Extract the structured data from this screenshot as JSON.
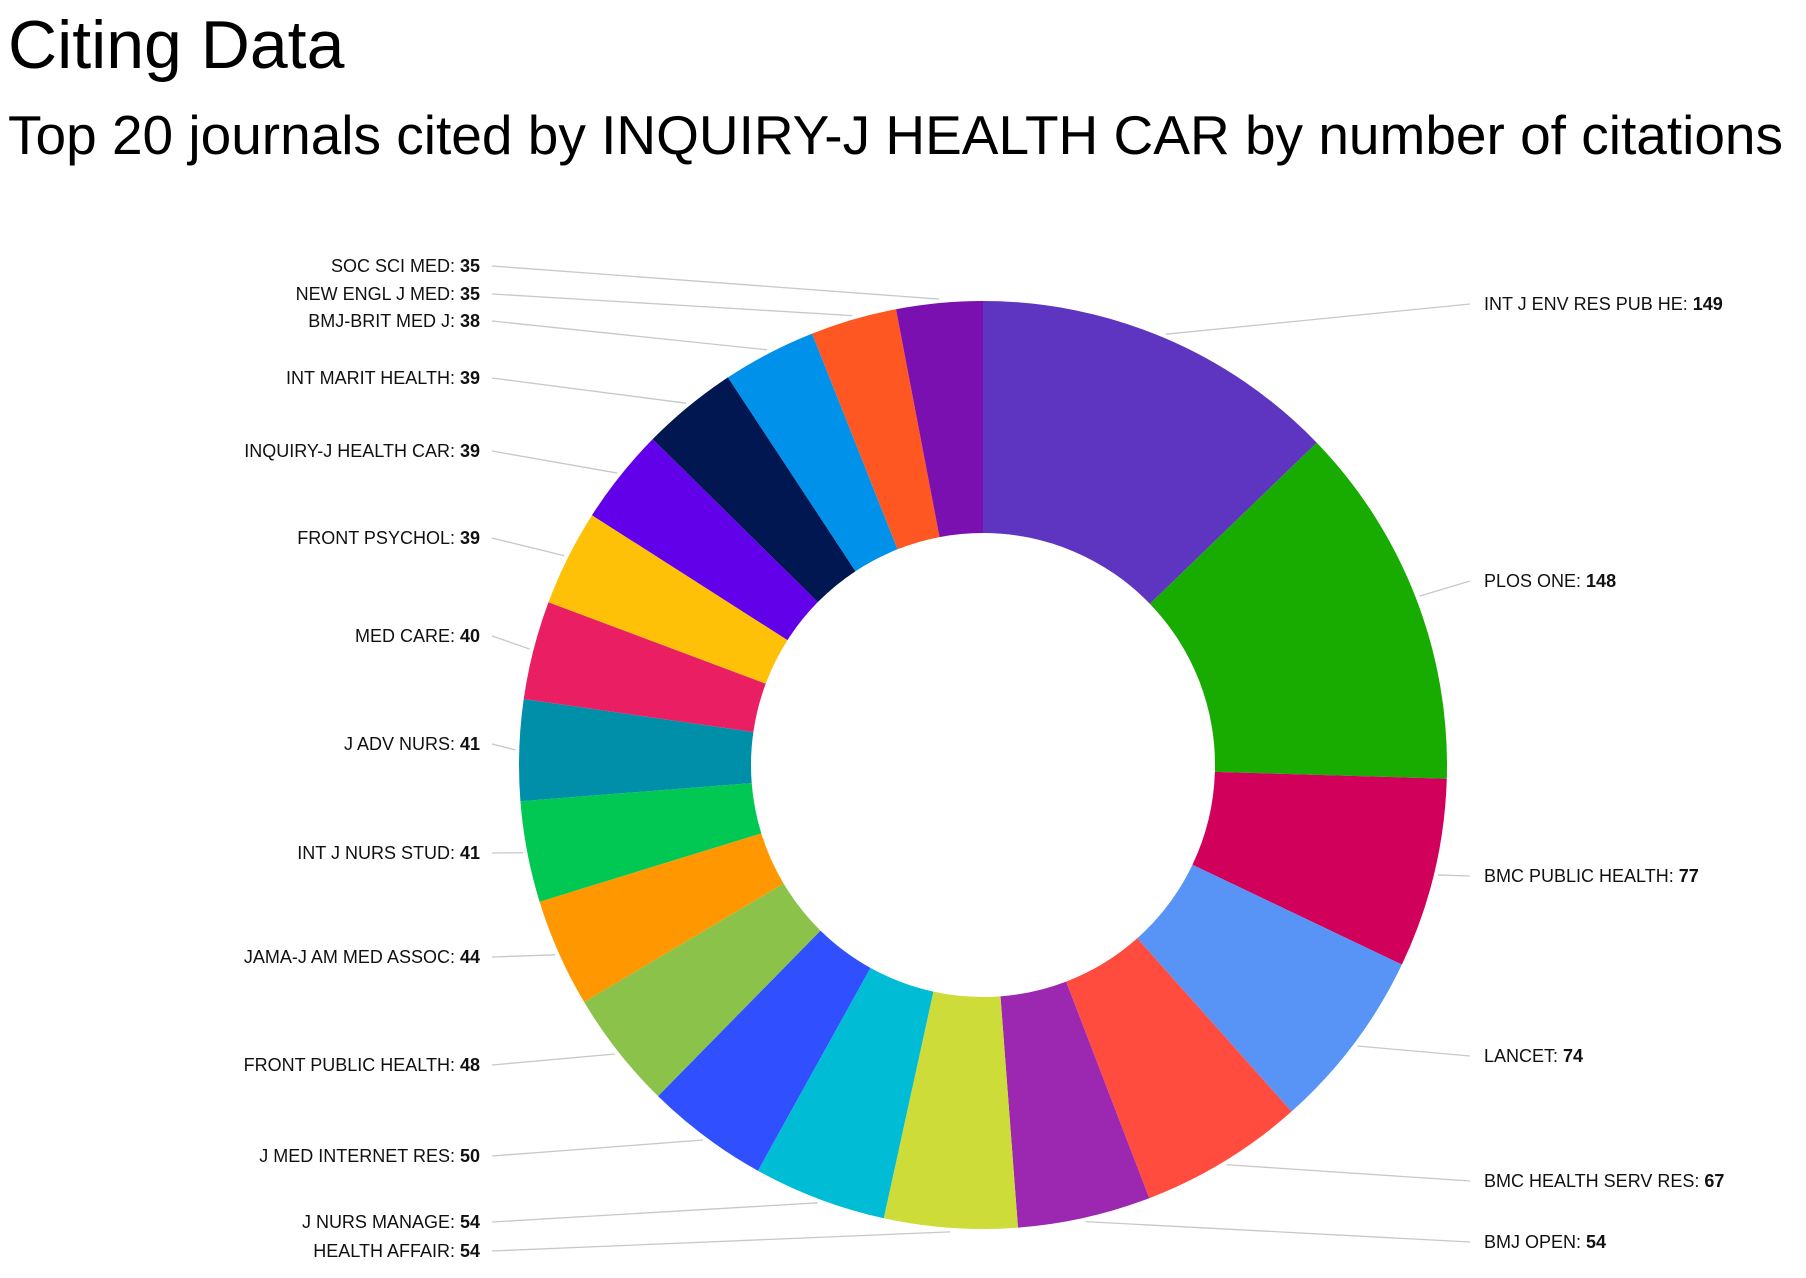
{
  "chart_data": {
    "type": "pie",
    "donut": true,
    "title": "Citing Data",
    "subtitle": "Top 20 journals cited by INQUIRY-J HEALTH CAR by number of citations",
    "slices": [
      {
        "label": "INT J ENV RES PUB HE",
        "value": 149,
        "color": "#5e35c1"
      },
      {
        "label": "PLOS ONE",
        "value": 148,
        "color": "#18ab00"
      },
      {
        "label": "BMC PUBLIC HEALTH",
        "value": 77,
        "color": "#d1005a"
      },
      {
        "label": "LANCET",
        "value": 74,
        "color": "#5894f6"
      },
      {
        "label": "BMC HEALTH SERV RES",
        "value": 67,
        "color": "#ff4c3f"
      },
      {
        "label": "BMJ OPEN",
        "value": 54,
        "color": "#9c27b0"
      },
      {
        "label": "HEALTH AFFAIR",
        "value": 54,
        "color": "#cddc39"
      },
      {
        "label": "J NURS MANAGE",
        "value": 54,
        "color": "#00bcd4"
      },
      {
        "label": "J MED INTERNET RES",
        "value": 50,
        "color": "#304ffe"
      },
      {
        "label": "FRONT PUBLIC HEALTH",
        "value": 48,
        "color": "#8bc34a"
      },
      {
        "label": "JAMA-J AM MED ASSOC",
        "value": 44,
        "color": "#ff9800"
      },
      {
        "label": "INT J NURS STUD",
        "value": 41,
        "color": "#00c853"
      },
      {
        "label": "J ADV NURS",
        "value": 41,
        "color": "#008fa8"
      },
      {
        "label": "MED CARE",
        "value": 40,
        "color": "#e91e63"
      },
      {
        "label": "FRONT PSYCHOL",
        "value": 39,
        "color": "#ffc107"
      },
      {
        "label": "INQUIRY-J HEALTH CAR",
        "value": 39,
        "color": "#6200ea"
      },
      {
        "label": "INT MARIT HEALTH",
        "value": 39,
        "color": "#001752"
      },
      {
        "label": "BMJ-BRIT MED J",
        "value": 38,
        "color": "#0091ea"
      },
      {
        "label": "NEW ENGL J MED",
        "value": 35,
        "color": "#ff5722"
      },
      {
        "label": "SOC SCI MED",
        "value": 35,
        "color": "#7b10b0"
      }
    ]
  }
}
